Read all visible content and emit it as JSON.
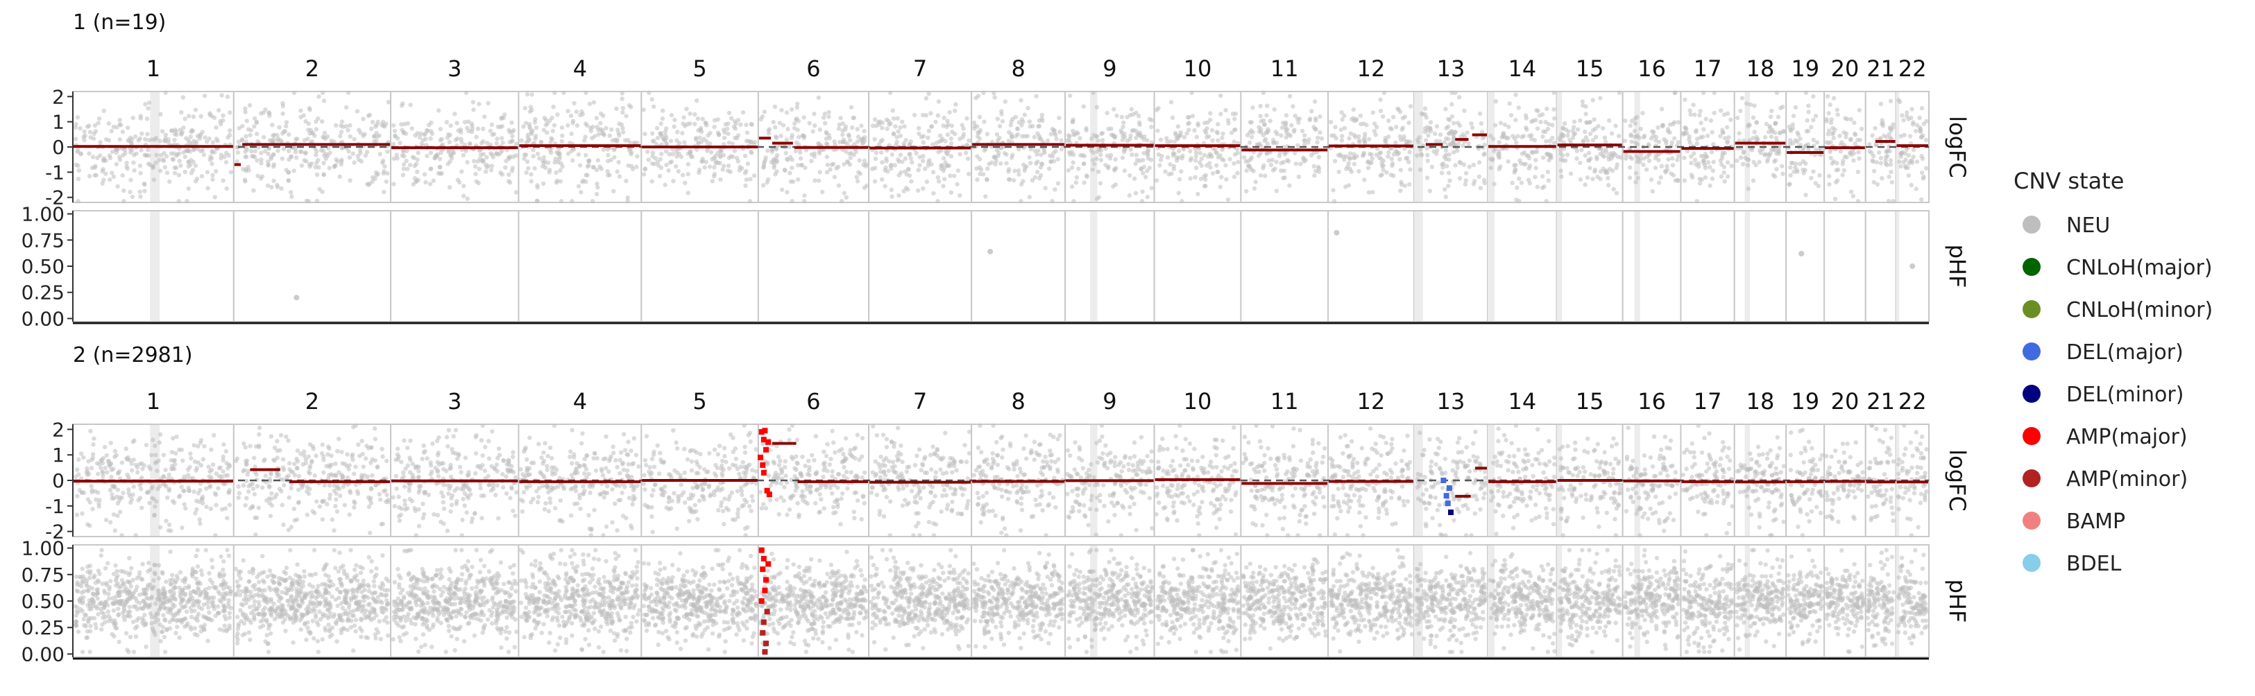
{
  "chart_data": {
    "type": "scatter",
    "chromosomes": [
      "1",
      "2",
      "3",
      "4",
      "5",
      "6",
      "7",
      "8",
      "9",
      "10",
      "11",
      "12",
      "13",
      "14",
      "15",
      "16",
      "17",
      "18",
      "19",
      "20",
      "21",
      "22"
    ],
    "chrom_lengths_mb": [
      249,
      243,
      198,
      190,
      181,
      171,
      159,
      145,
      138,
      134,
      135,
      133,
      114,
      107,
      102,
      90,
      83,
      80,
      59,
      64,
      47,
      51
    ],
    "panels": [
      {
        "title": "1 (n=19)",
        "logFC": {
          "label": "logFC",
          "ticks": [
            "2",
            "1",
            "0",
            "-1",
            "-2"
          ],
          "ylim": [
            -2.2,
            2.2
          ],
          "segments": [
            {
              "chrom": "1",
              "start": 0,
              "end": 1,
              "value": 0.02,
              "state": "AMP(minor)"
            },
            {
              "chrom": "2",
              "start": 0,
              "end": 0.05,
              "value": -0.7,
              "state": "AMP(minor)"
            },
            {
              "chrom": "2",
              "start": 0.05,
              "end": 1,
              "value": 0.1,
              "state": "AMP(minor)"
            },
            {
              "chrom": "3",
              "start": 0,
              "end": 1,
              "value": -0.03,
              "state": "AMP(minor)"
            },
            {
              "chrom": "4",
              "start": 0,
              "end": 1,
              "value": 0.05,
              "state": "AMP(minor)"
            },
            {
              "chrom": "5",
              "start": 0,
              "end": 1,
              "value": 0.0,
              "state": "AMP(minor)"
            },
            {
              "chrom": "6",
              "start": 0,
              "end": 0.12,
              "value": 0.35,
              "state": "AMP(minor)"
            },
            {
              "chrom": "6",
              "start": 0.12,
              "end": 0.32,
              "value": 0.15,
              "state": "AMP(minor)"
            },
            {
              "chrom": "6",
              "start": 0.32,
              "end": 1,
              "value": -0.02,
              "state": "AMP(minor)"
            },
            {
              "chrom": "7",
              "start": 0,
              "end": 1,
              "value": -0.04,
              "state": "AMP(minor)"
            },
            {
              "chrom": "8",
              "start": 0,
              "end": 1,
              "value": 0.1,
              "state": "AMP(minor)"
            },
            {
              "chrom": "9",
              "start": 0,
              "end": 1,
              "value": 0.07,
              "state": "AMP(minor)"
            },
            {
              "chrom": "10",
              "start": 0,
              "end": 1,
              "value": 0.05,
              "state": "AMP(minor)"
            },
            {
              "chrom": "11",
              "start": 0,
              "end": 1,
              "value": -0.12,
              "state": "AMP(minor)"
            },
            {
              "chrom": "12",
              "start": 0,
              "end": 1,
              "value": 0.04,
              "state": "AMP(minor)"
            },
            {
              "chrom": "13",
              "start": 0.15,
              "end": 0.4,
              "value": 0.1,
              "state": "AMP(minor)"
            },
            {
              "chrom": "13",
              "start": 0.55,
              "end": 0.75,
              "value": 0.3,
              "state": "AMP(minor)"
            },
            {
              "chrom": "13",
              "start": 0.78,
              "end": 1,
              "value": 0.48,
              "state": "AMP(minor)"
            },
            {
              "chrom": "14",
              "start": 0,
              "end": 1,
              "value": 0.02,
              "state": "AMP(minor)"
            },
            {
              "chrom": "15",
              "start": 0,
              "end": 1,
              "value": 0.08,
              "state": "AMP(minor)"
            },
            {
              "chrom": "16",
              "start": 0,
              "end": 1,
              "value": -0.18,
              "state": "AMP(minor)"
            },
            {
              "chrom": "17",
              "start": 0,
              "end": 1,
              "value": -0.06,
              "state": "AMP(minor)"
            },
            {
              "chrom": "18",
              "start": 0,
              "end": 1,
              "value": 0.15,
              "state": "AMP(minor)"
            },
            {
              "chrom": "19",
              "start": 0,
              "end": 1,
              "value": -0.22,
              "state": "AMP(minor)"
            },
            {
              "chrom": "20",
              "start": 0,
              "end": 1,
              "value": -0.03,
              "state": "AMP(minor)"
            },
            {
              "chrom": "21",
              "start": 0.3,
              "end": 1,
              "value": 0.22,
              "state": "AMP(minor)"
            },
            {
              "chrom": "22",
              "start": 0,
              "end": 1,
              "value": 0.05,
              "state": "AMP(minor)"
            }
          ],
          "highlight_points": []
        },
        "pHF": {
          "label": "pHF",
          "ticks": [
            "1.00",
            "0.75",
            "0.50",
            "0.25",
            "0.00"
          ],
          "ylim": [
            -0.03,
            1.03
          ],
          "points": [
            {
              "chrom": "2",
              "pos": 0.4,
              "value": 0.2,
              "state": "NEU"
            },
            {
              "chrom": "8",
              "pos": 0.2,
              "value": 0.64,
              "state": "NEU"
            },
            {
              "chrom": "12",
              "pos": 0.1,
              "value": 0.82,
              "state": "NEU"
            },
            {
              "chrom": "19",
              "pos": 0.4,
              "value": 0.62,
              "state": "NEU"
            },
            {
              "chrom": "22",
              "pos": 0.5,
              "value": 0.5,
              "state": "NEU"
            }
          ],
          "highlight_points": []
        }
      },
      {
        "title": "2 (n=2981)",
        "logFC": {
          "label": "logFC",
          "ticks": [
            "2",
            "1",
            "0",
            "-1",
            "-2"
          ],
          "ylim": [
            -2.2,
            2.2
          ],
          "segments": [
            {
              "chrom": "1",
              "start": 0,
              "end": 1,
              "value": -0.03,
              "state": "AMP(minor)"
            },
            {
              "chrom": "2",
              "start": 0.1,
              "end": 0.3,
              "value": 0.42,
              "state": "AMP(minor)"
            },
            {
              "chrom": "2",
              "start": 0.35,
              "end": 1,
              "value": -0.05,
              "state": "AMP(minor)"
            },
            {
              "chrom": "3",
              "start": 0,
              "end": 1,
              "value": -0.02,
              "state": "AMP(minor)"
            },
            {
              "chrom": "4",
              "start": 0,
              "end": 1,
              "value": -0.05,
              "state": "AMP(minor)"
            },
            {
              "chrom": "5",
              "start": 0,
              "end": 1,
              "value": 0.0,
              "state": "AMP(minor)"
            },
            {
              "chrom": "6",
              "start": 0.12,
              "end": 0.35,
              "value": 1.45,
              "state": "AMP(minor)"
            },
            {
              "chrom": "6",
              "start": 0.35,
              "end": 1,
              "value": -0.05,
              "state": "AMP(minor)"
            },
            {
              "chrom": "7",
              "start": 0,
              "end": 1,
              "value": -0.07,
              "state": "AMP(minor)"
            },
            {
              "chrom": "8",
              "start": 0,
              "end": 1,
              "value": -0.04,
              "state": "AMP(minor)"
            },
            {
              "chrom": "9",
              "start": 0,
              "end": 1,
              "value": -0.01,
              "state": "AMP(minor)"
            },
            {
              "chrom": "10",
              "start": 0,
              "end": 1,
              "value": 0.03,
              "state": "AMP(minor)"
            },
            {
              "chrom": "11",
              "start": 0,
              "end": 1,
              "value": -0.12,
              "state": "AMP(minor)"
            },
            {
              "chrom": "12",
              "start": 0,
              "end": 1,
              "value": -0.04,
              "state": "AMP(minor)"
            },
            {
              "chrom": "13",
              "start": 0.55,
              "end": 0.78,
              "value": -0.62,
              "state": "AMP(minor)"
            },
            {
              "chrom": "13",
              "start": 0.82,
              "end": 1,
              "value": 0.48,
              "state": "AMP(minor)"
            },
            {
              "chrom": "14",
              "start": 0,
              "end": 1,
              "value": -0.05,
              "state": "AMP(minor)"
            },
            {
              "chrom": "15",
              "start": 0,
              "end": 1,
              "value": 0.0,
              "state": "AMP(minor)"
            },
            {
              "chrom": "16",
              "start": 0,
              "end": 1,
              "value": -0.02,
              "state": "AMP(minor)"
            },
            {
              "chrom": "17",
              "start": 0,
              "end": 1,
              "value": -0.05,
              "state": "AMP(minor)"
            },
            {
              "chrom": "18",
              "start": 0,
              "end": 1,
              "value": -0.06,
              "state": "AMP(minor)"
            },
            {
              "chrom": "19",
              "start": 0,
              "end": 1,
              "value": -0.05,
              "state": "AMP(minor)"
            },
            {
              "chrom": "20",
              "start": 0,
              "end": 1,
              "value": -0.04,
              "state": "AMP(minor)"
            },
            {
              "chrom": "21",
              "start": 0,
              "end": 1,
              "value": -0.06,
              "state": "AMP(minor)"
            },
            {
              "chrom": "22",
              "start": 0,
              "end": 1,
              "value": -0.06,
              "state": "AMP(minor)"
            }
          ],
          "highlight_points": [
            {
              "chrom": "6",
              "pos": 0.03,
              "value": 1.9,
              "state": "AMP(major)"
            },
            {
              "chrom": "6",
              "pos": 0.05,
              "value": 1.6,
              "state": "AMP(major)"
            },
            {
              "chrom": "6",
              "pos": 0.07,
              "value": 1.2,
              "state": "AMP(major)"
            },
            {
              "chrom": "6",
              "pos": 0.04,
              "value": 0.6,
              "state": "AMP(major)"
            },
            {
              "chrom": "6",
              "pos": 0.08,
              "value": -0.4,
              "state": "AMP(major)"
            },
            {
              "chrom": "6",
              "pos": 0.06,
              "value": 1.95,
              "state": "AMP(major)"
            },
            {
              "chrom": "6",
              "pos": 0.09,
              "value": 1.5,
              "state": "AMP(major)"
            },
            {
              "chrom": "6",
              "pos": 0.02,
              "value": 0.9,
              "state": "AMP(major)"
            },
            {
              "chrom": "6",
              "pos": 0.1,
              "value": -0.55,
              "state": "AMP(major)"
            },
            {
              "chrom": "6",
              "pos": 0.05,
              "value": 0.3,
              "state": "AMP(major)"
            },
            {
              "chrom": "13",
              "pos": 0.4,
              "value": 0.0,
              "state": "DEL(major)"
            },
            {
              "chrom": "13",
              "pos": 0.44,
              "value": -0.6,
              "state": "DEL(major)"
            },
            {
              "chrom": "13",
              "pos": 0.46,
              "value": -0.9,
              "state": "DEL(major)"
            },
            {
              "chrom": "13",
              "pos": 0.5,
              "value": -1.25,
              "state": "DEL(minor)"
            },
            {
              "chrom": "13",
              "pos": 0.48,
              "value": -0.3,
              "state": "DEL(major)"
            }
          ]
        },
        "pHF": {
          "label": "pHF",
          "ticks": [
            "1.00",
            "0.75",
            "0.50",
            "0.25",
            "0.00"
          ],
          "ylim": [
            -0.03,
            1.03
          ],
          "points": [],
          "highlight_points": [
            {
              "chrom": "6",
              "pos": 0.03,
              "value": 0.98,
              "state": "AMP(major)"
            },
            {
              "chrom": "6",
              "pos": 0.05,
              "value": 0.9,
              "state": "AMP(major)"
            },
            {
              "chrom": "6",
              "pos": 0.04,
              "value": 0.8,
              "state": "AMP(major)"
            },
            {
              "chrom": "6",
              "pos": 0.07,
              "value": 0.7,
              "state": "AMP(major)"
            },
            {
              "chrom": "6",
              "pos": 0.06,
              "value": 0.6,
              "state": "AMP(major)"
            },
            {
              "chrom": "6",
              "pos": 0.03,
              "value": 0.5,
              "state": "AMP(major)"
            },
            {
              "chrom": "6",
              "pos": 0.08,
              "value": 0.4,
              "state": "AMP(minor)"
            },
            {
              "chrom": "6",
              "pos": 0.05,
              "value": 0.3,
              "state": "AMP(minor)"
            },
            {
              "chrom": "6",
              "pos": 0.04,
              "value": 0.2,
              "state": "AMP(minor)"
            },
            {
              "chrom": "6",
              "pos": 0.07,
              "value": 0.1,
              "state": "AMP(minor)"
            },
            {
              "chrom": "6",
              "pos": 0.06,
              "value": 0.02,
              "state": "AMP(minor)"
            },
            {
              "chrom": "6",
              "pos": 0.09,
              "value": 0.85,
              "state": "AMP(major)"
            }
          ]
        }
      }
    ],
    "legend": {
      "title": "CNV state",
      "placement": "right",
      "items": [
        {
          "label": "NEU",
          "color": "#BEBEBE"
        },
        {
          "label": "CNLoH(major)",
          "color": "#006400"
        },
        {
          "label": "CNLoH(minor)",
          "color": "#6B8E23"
        },
        {
          "label": "DEL(major)",
          "color": "#4169E1"
        },
        {
          "label": "DEL(minor)",
          "color": "#000080"
        },
        {
          "label": "AMP(major)",
          "color": "#FF0000"
        },
        {
          "label": "AMP(minor)",
          "color": "#B22222"
        },
        {
          "label": "BAMP",
          "color": "#F08080"
        },
        {
          "label": "BDEL",
          "color": "#87CEEB"
        }
      ]
    }
  }
}
